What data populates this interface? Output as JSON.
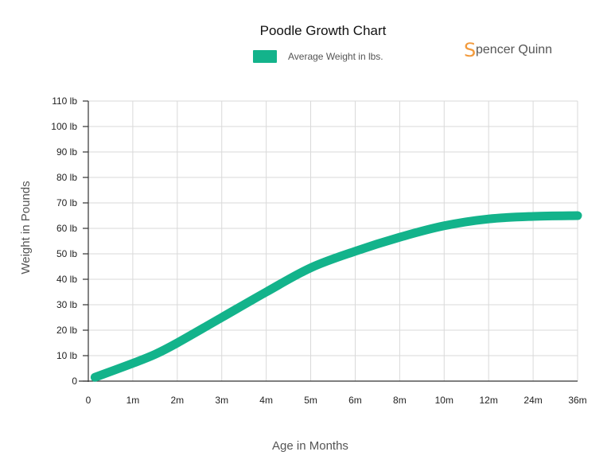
{
  "chart_data": {
    "type": "line",
    "title": "Poodle Growth Chart",
    "xlabel": "Age in Months",
    "ylabel": "Weight in Pounds",
    "categories": [
      "0",
      "1m",
      "2m",
      "3m",
      "4m",
      "5m",
      "6m",
      "8m",
      "10m",
      "12m",
      "24m",
      "36m"
    ],
    "yticks": [
      "0",
      "10 lb",
      "20 lb",
      "30 lb",
      "40 lb",
      "50 lb",
      "60 lb",
      "70 lb",
      "80 lb",
      "90 lb",
      "100 lb",
      "110 lb"
    ],
    "ylim": [
      0,
      110
    ],
    "grid": true,
    "legend": "top",
    "series": [
      {
        "name": "Average Weight in lbs.",
        "color": "#13b38b",
        "x": [
          0.15,
          1,
          1.5,
          2,
          3,
          4,
          5,
          6,
          7,
          8,
          9,
          10,
          11
        ],
        "values": [
          1.5,
          7,
          10.5,
          15,
          25,
          35,
          44.5,
          51,
          56.5,
          61,
          63.7,
          64.7,
          65
        ]
      }
    ]
  },
  "brand": {
    "initial": "S",
    "rest": "pencer Quinn",
    "color": "#f29a3c"
  }
}
